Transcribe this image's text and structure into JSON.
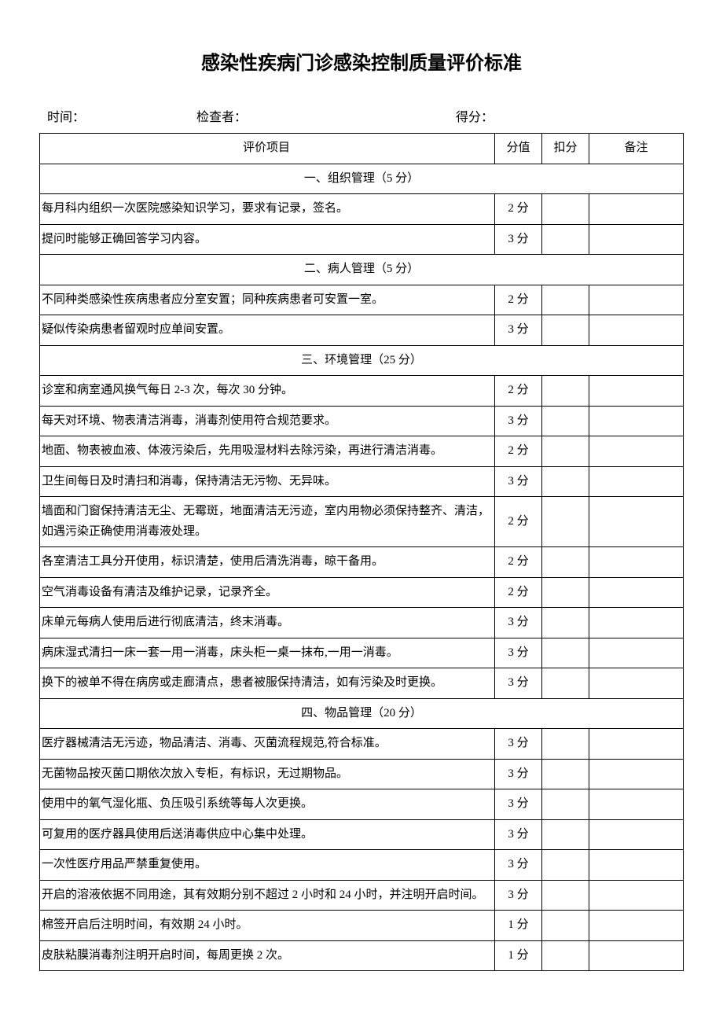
{
  "title": "感染性疾病门诊感染控制质量评价标准",
  "meta": {
    "time_label": "时间：",
    "checker_label": "检查者：",
    "score_label": "得分："
  },
  "headers": {
    "item": "评价项目",
    "score": "分值",
    "deduct": "扣分",
    "note": "备注"
  },
  "sections": [
    {
      "title": "一、组织管理（5 分）",
      "rows": [
        {
          "item": "每月科内组织一次医院感染知识学习，要求有记录，签名。",
          "score": "2 分"
        },
        {
          "item": "提问时能够正确回答学习内容。",
          "score": "3 分"
        }
      ]
    },
    {
      "title": "二、病人管理（5 分）",
      "rows": [
        {
          "item": "不同种类感染性疾病患者应分室安置；同种疾病患者可安置一室。",
          "score": "2 分"
        },
        {
          "item": "疑似传染病患者留观时应单间安置。",
          "score": "3 分"
        }
      ]
    },
    {
      "title": "三、环境管理（25 分）",
      "rows": [
        {
          "item": "诊室和病室通风换气每日 2-3 次，每次 30 分钟。",
          "score": "2 分"
        },
        {
          "item": "每天对环境、物表清洁消毒，消毒剂使用符合规范要求。",
          "score": "3 分"
        },
        {
          "item": "地面、物表被血液、体液污染后，先用吸湿材料去除污染，再进行清洁消毒。",
          "score": "2 分"
        },
        {
          "item": "卫生间每日及时清扫和消毒，保持清洁无污物、无异味。",
          "score": "3 分"
        },
        {
          "item": "墙面和门窗保持清洁无尘、无霉斑，地面清洁无污迹，室内用物必须保持整齐、清洁，如遇污染正确使用消毒液处理。",
          "score": "2 分"
        },
        {
          "item": "各室清洁工具分开使用，标识清楚，使用后清洗消毒，晾干备用。",
          "score": "2 分"
        },
        {
          "item": "空气消毒设备有清洁及维护记录，记录齐全。",
          "score": "2 分"
        },
        {
          "item": "床单元每病人使用后进行彻底清洁，终末消毒。",
          "score": "3 分"
        },
        {
          "item": "病床湿式清扫一床一套一用一消毒，床头柜一桌一抹布,一用一消毒。",
          "score": "3 分"
        },
        {
          "item": "换下的被单不得在病房或走廊清点，患者被服保持清洁，如有污染及时更换。",
          "score": "3 分"
        }
      ]
    },
    {
      "title": "四、物品管理（20 分）",
      "rows": [
        {
          "item": "医疗器械清洁无污迹，物品清洁、消毒、灭菌流程规范,符合标准。",
          "score": "3 分"
        },
        {
          "item": "无菌物品按灭菌口期依次放入专柜，有标识，无过期物品。",
          "score": "3 分"
        },
        {
          "item": "使用中的氧气湿化瓶、负压吸引系统等每人次更换。",
          "score": "3 分"
        },
        {
          "item": "可复用的医疗器具使用后送消毒供应中心集中处理。",
          "score": "3 分"
        },
        {
          "item": "一次性医疗用品严禁重复使用。",
          "score": "3 分"
        },
        {
          "item": "开启的溶液依据不同用途，其有效期分别不超过 2 小时和 24 小时，并注明开启时间。",
          "score": "3 分",
          "score_top": true
        },
        {
          "item": "棉签开启后注明时间，有效期 24 小时。",
          "score": "1 分"
        },
        {
          "item": "皮肤粘膜消毒剂注明开启时间，每周更换 2 次。",
          "score": "1 分"
        }
      ]
    }
  ]
}
